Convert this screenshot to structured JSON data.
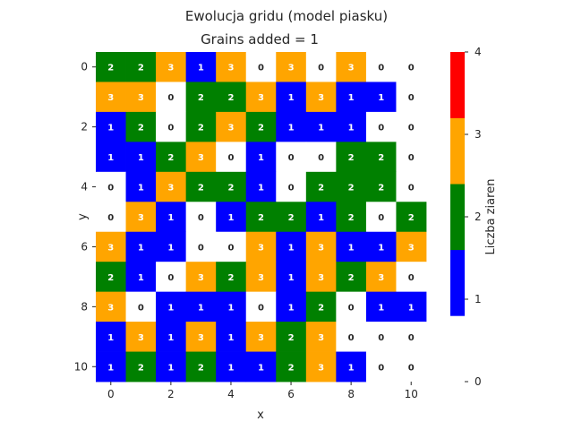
{
  "chart_data": {
    "type": "heatmap",
    "title": "Ewolucja gridu (model piasku)",
    "subtitle": "Grains added = 1",
    "xlabel": "x",
    "ylabel": "y",
    "x_ticks": [
      "0",
      "2",
      "4",
      "6",
      "8",
      "10"
    ],
    "y_ticks": [
      "0",
      "2",
      "4",
      "6",
      "8",
      "10"
    ],
    "colorbar": {
      "label": "Liczba ziaren",
      "ticks": [
        "0",
        "1",
        "2",
        "3",
        "4"
      ],
      "levels": [
        {
          "value": 0,
          "color": "#ffffff"
        },
        {
          "value": 1,
          "color": "#0000ff"
        },
        {
          "value": 2,
          "color": "#008000"
        },
        {
          "value": 3,
          "color": "#ffa500"
        },
        {
          "value": 4,
          "color": "#ff0000"
        }
      ]
    },
    "grid": [
      [
        2,
        2,
        3,
        1,
        3,
        0,
        3,
        0,
        3,
        0,
        0
      ],
      [
        3,
        3,
        0,
        2,
        2,
        3,
        1,
        3,
        1,
        1,
        0
      ],
      [
        1,
        2,
        0,
        2,
        3,
        2,
        1,
        1,
        1,
        0,
        0
      ],
      [
        1,
        1,
        2,
        3,
        0,
        1,
        0,
        0,
        2,
        2,
        0
      ],
      [
        0,
        1,
        3,
        2,
        2,
        1,
        0,
        2,
        2,
        2,
        0
      ],
      [
        0,
        3,
        1,
        0,
        1,
        2,
        2,
        1,
        2,
        0,
        2
      ],
      [
        3,
        1,
        1,
        0,
        0,
        3,
        1,
        3,
        1,
        1,
        3
      ],
      [
        2,
        1,
        0,
        3,
        2,
        3,
        1,
        3,
        2,
        3,
        0
      ],
      [
        3,
        0,
        1,
        1,
        1,
        0,
        1,
        2,
        0,
        1,
        1
      ],
      [
        1,
        3,
        1,
        3,
        1,
        3,
        2,
        3,
        0,
        0,
        0
      ],
      [
        1,
        2,
        1,
        2,
        1,
        1,
        2,
        3,
        1,
        0,
        0
      ]
    ],
    "cell_labels": [
      [
        "2",
        "2",
        "3",
        "1",
        "3",
        "0",
        "3",
        "0",
        "3",
        "0",
        "0"
      ],
      [
        "3",
        "3",
        "0",
        "2",
        "2",
        "3",
        "1",
        "3",
        "1",
        "1",
        "0"
      ],
      [
        "1",
        "2",
        "0",
        "2",
        "3",
        "2",
        "1",
        "1",
        "1",
        "0",
        "0"
      ],
      [
        "1",
        "1",
        "2",
        "3",
        "0",
        "1",
        "0",
        "0",
        "2",
        "2",
        "0"
      ],
      [
        "0",
        "1",
        "3",
        "2",
        "2",
        "1",
        "0",
        "2",
        "2",
        "2",
        "0"
      ],
      [
        "0",
        "3",
        "1",
        "0",
        "1",
        "2",
        "2",
        "1",
        "2",
        "0",
        "2"
      ],
      [
        "3",
        "1",
        "1",
        "0",
        "0",
        "3",
        "1",
        "3",
        "1",
        "1",
        "3"
      ],
      [
        "2",
        "1",
        "0",
        "3",
        "2",
        "3",
        "1",
        "3",
        "2",
        "3",
        "0"
      ],
      [
        "3",
        "0",
        "1",
        "1",
        "1",
        "0",
        "1",
        "2",
        "0",
        "1",
        "1"
      ],
      [
        "1",
        "3",
        "1",
        "3",
        "1",
        "3",
        "2",
        "3",
        "0",
        "0",
        "0"
      ],
      [
        "1",
        "2",
        "1",
        "2",
        "1",
        "1",
        "2",
        "3",
        "1",
        "0",
        "0"
      ]
    ]
  }
}
